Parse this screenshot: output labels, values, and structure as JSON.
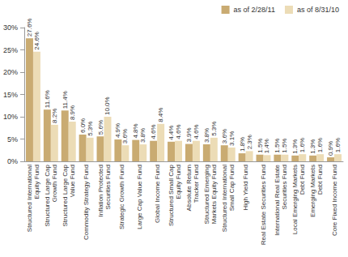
{
  "chart_data": {
    "type": "bar",
    "categories": [
      "Structured International\nEquity Fund",
      "Structured Large Cap\nGrowth Fund",
      "Structured Large Cap\nValue Fund",
      "Commodity Strategy Fund",
      "Inflation Protected\nSecurities Fund",
      "Strategic Growth Fund",
      "Large Cap Value Fund",
      "Global Income Fund",
      "Structured Small Cap\nEquity Fund",
      "Absolute Return\nTracker Fund",
      "Structured Emerging\nMarkets Equity Fund",
      "Structured International\nSmall Cap Fund",
      "High Yield Fund",
      "Real Estate Securities Fund",
      "International Real Estate\nSecurities Fund",
      "Local Emerging Markets\nDebt Fund",
      "Emerging Markets\nDebt Fund",
      "Core Fixed Income Fund"
    ],
    "series": [
      {
        "name": "as of 2/28/11",
        "color": "#c9ab72",
        "values": [
          27.6,
          11.6,
          11.4,
          6.0,
          5.6,
          4.9,
          4.8,
          4.6,
          4.4,
          3.9,
          3.8,
          3.6,
          1.8,
          1.5,
          1.5,
          1.3,
          1.3,
          0.9
        ],
        "value_labels": [
          "27.6%",
          "11.6%",
          "11.4%",
          "6.0%",
          "5.6%",
          "4.9%",
          "4.8%",
          "4.6%",
          "4.4%",
          "3.9%",
          "3.8%",
          "3.6%",
          "1.8%",
          "1.5%",
          "1.5%",
          "1.3%",
          "1.3%",
          "0.9%"
        ]
      },
      {
        "name": "as of 8/31/10",
        "color": "#ecdcb6",
        "values": [
          24.6,
          8.2,
          8.9,
          5.3,
          10.0,
          3.6,
          3.8,
          8.4,
          4.6,
          4.6,
          5.3,
          3.1,
          2.3,
          1.4,
          1.5,
          1.6,
          1.6,
          1.6
        ],
        "value_labels": [
          "24.6%",
          "8.2%",
          "8.9%",
          "5.3%",
          "10.0%",
          "3.6%",
          "3.8%",
          "8.4%",
          "4.6%",
          "4.6%",
          "5.3%",
          "3.1%",
          "2.3%",
          "1.4%",
          "1.5%",
          "1.6%",
          "1.6%",
          "1.6%"
        ]
      }
    ],
    "ylim": [
      0,
      30
    ],
    "yticks": [
      {
        "value": 0,
        "label": "0%"
      },
      {
        "value": 5,
        "label": "5%"
      },
      {
        "value": 10,
        "label": "10%"
      },
      {
        "value": 15,
        "label": "15%"
      },
      {
        "value": 20,
        "label": "20%"
      },
      {
        "value": 25,
        "label": "25%"
      },
      {
        "value": 30,
        "label": "30%"
      }
    ],
    "grid": false,
    "legend": "top-right",
    "data_labels": true
  }
}
